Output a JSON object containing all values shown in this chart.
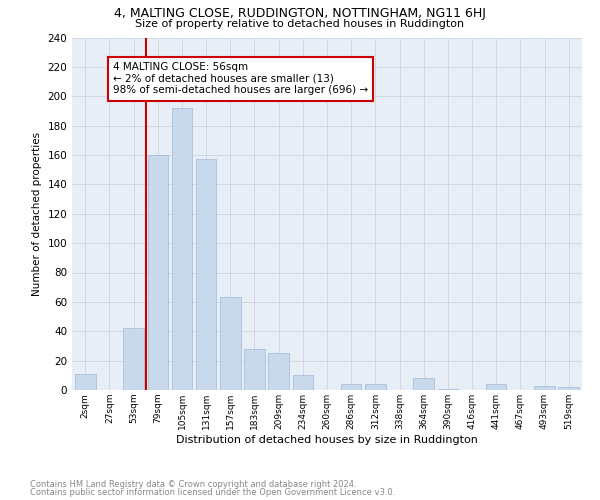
{
  "title": "4, MALTING CLOSE, RUDDINGTON, NOTTINGHAM, NG11 6HJ",
  "subtitle": "Size of property relative to detached houses in Ruddington",
  "xlabel": "Distribution of detached houses by size in Ruddington",
  "ylabel": "Number of detached properties",
  "categories": [
    "2sqm",
    "27sqm",
    "53sqm",
    "79sqm",
    "105sqm",
    "131sqm",
    "157sqm",
    "183sqm",
    "209sqm",
    "234sqm",
    "260sqm",
    "286sqm",
    "312sqm",
    "338sqm",
    "364sqm",
    "390sqm",
    "416sqm",
    "441sqm",
    "467sqm",
    "493sqm",
    "519sqm"
  ],
  "values": [
    11,
    0,
    42,
    160,
    192,
    157,
    63,
    28,
    25,
    10,
    0,
    4,
    4,
    0,
    8,
    1,
    0,
    4,
    0,
    3,
    2
  ],
  "bar_color": "#c9d9ec",
  "bar_edge_color": "#a0b8d8",
  "grid_color": "#d0d8e8",
  "background_color": "#e8eef6",
  "property_line_x": 2.5,
  "property_line_label": "4 MALTING CLOSE: 56sqm",
  "annotation_line1": "← 2% of detached houses are smaller (13)",
  "annotation_line2": "98% of semi-detached houses are larger (696) →",
  "annotation_box_color": "#cc0000",
  "ylim": [
    0,
    240
  ],
  "yticks": [
    0,
    20,
    40,
    60,
    80,
    100,
    120,
    140,
    160,
    180,
    200,
    220,
    240
  ],
  "footnote1": "Contains HM Land Registry data © Crown copyright and database right 2024.",
  "footnote2": "Contains public sector information licensed under the Open Government Licence v3.0."
}
